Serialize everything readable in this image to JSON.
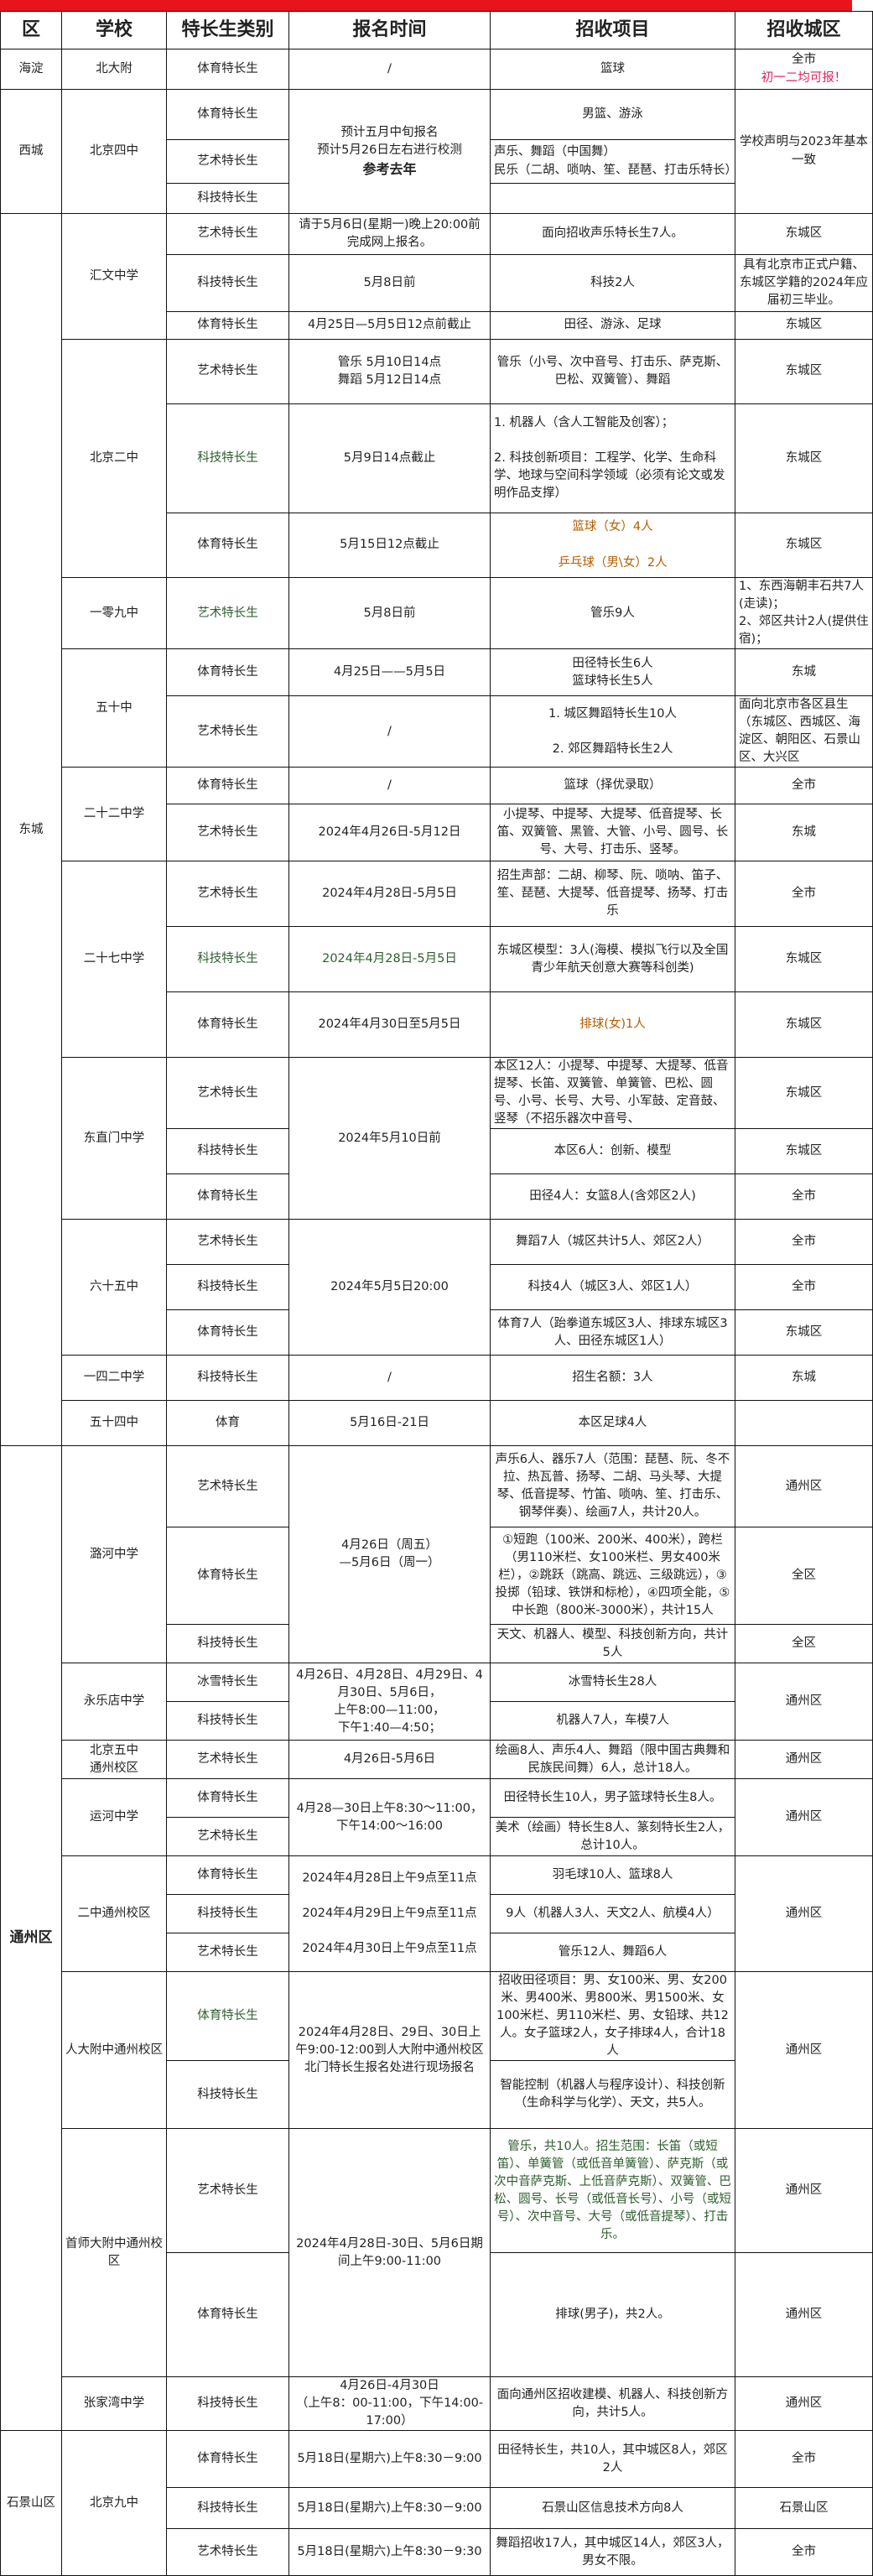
{
  "title": "",
  "colors": {
    "title_bar": "#e8141c",
    "note_red": "#e0245e",
    "orange": "#b35c00",
    "green": "#2e5e2e"
  },
  "headers": [
    "区",
    "学校",
    "特长生类别",
    "报名时间",
    "招收项目",
    "招收城区"
  ],
  "regions": [
    {
      "name": "海淀",
      "schools": [
        {
          "name": "北大附",
          "rows": [
            {
              "category": "体育特长生",
              "time": "/",
              "items": "篮球",
              "area": "全市",
              "area_note": "初一二均可报！"
            }
          ]
        }
      ]
    },
    {
      "name": "西城",
      "schools": [
        {
          "name": "北京四中",
          "time": "预计五月中旬报名\n预计5月26日左右进行校测",
          "time_bold": "参考去年",
          "area": "学校声明与2023年基本一致",
          "rows": [
            {
              "category": "体育特长生",
              "items": "男篮、游泳"
            },
            {
              "category": "艺术特长生",
              "items": "声乐、舞蹈（中国舞）\n民乐（二胡、唢呐、笙、琵琶、打击乐特长）",
              "left": true
            },
            {
              "category": "科技特长生",
              "items": ""
            }
          ]
        }
      ]
    },
    {
      "name": "东城",
      "schools": [
        {
          "name": "汇文中学",
          "rows": [
            {
              "category": "艺术特长生",
              "time": "请于5月6日(星期一)晚上20:00前完成网上报名。",
              "items": "面向招收声乐特长生7人。",
              "area": "东城区"
            },
            {
              "category": "科技特长生",
              "time": "5月8日前",
              "items": "科技2人",
              "area": "具有北京市正式户籍、东城区学籍的2024年应届初三毕业。"
            },
            {
              "category": "体育特长生",
              "time": "4月25日—5月5日12点前截止",
              "items": "田径、游泳、足球",
              "area": "东城区"
            }
          ]
        },
        {
          "name": "北京二中",
          "rows": [
            {
              "category": "艺术特长生",
              "time": "管乐  5月10日14点\n舞蹈  5月12日14点",
              "items": "管乐（小号、次中音号、打击乐、萨克斯、巴松、双簧管）、舞蹈",
              "area": "东城区"
            },
            {
              "category": "科技特长生",
              "category_color": "#2e5e2e",
              "time": "5月9日14点截止",
              "items": "1. 机器人（含人工智能及创客）；\n\n2. 科技创新项目：工程学、化学、生命科学、地球与空间科学领域（必须有论文或发明作品支撑）",
              "left": true,
              "area": "东城区"
            },
            {
              "category": "体育特长生",
              "time": "5月15日12点截止",
              "items": "篮球（女）4人\n\n乒乓球（男\\女）2人",
              "items_color": "#b35c00",
              "area": "东城区"
            }
          ]
        },
        {
          "name": "一零九中",
          "rows": [
            {
              "category": "艺术特长生",
              "category_color": "#2e5e2e",
              "time": "5月8日前",
              "items": "管乐9人",
              "area": "1、东西海朝丰石共7人(走读)；\n2、郊区共计2人(提供住宿)；",
              "area_left": true
            }
          ]
        },
        {
          "name": "五十中",
          "rows": [
            {
              "category": "体育特长生",
              "time": "4月25日——5月5日",
              "items": "田径特长生6人\n篮球特长生5人",
              "area": "东城"
            },
            {
              "category": "艺术特长生",
              "time": "/",
              "items": "1. 城区舞蹈特长生10人\n\n2. 郊区舞蹈特长生2人",
              "area": "面向北京市各区县生（东城区、西城区、海淀区、朝阳区、石景山区、大兴区",
              "area_left": true
            }
          ]
        },
        {
          "name": "二十二中学",
          "rows": [
            {
              "category": "体育特长生",
              "time": "/",
              "items": "篮球（择优录取）",
              "area": "全市"
            },
            {
              "category": "艺术特长生",
              "time": "2024年4月26日-5月12日",
              "items": "小提琴、中提琴、大提琴、低音提琴、长笛、双簧管、黑管、大管、小号、圆号、长号、大号、打击乐、竖琴。",
              "area": "东城"
            }
          ]
        },
        {
          "name": "二十七中学",
          "rows": [
            {
              "category": "艺术特长生",
              "time": "2024年4月28日-5月5日",
              "items": "招生声部：二胡、柳琴、阮、唢呐、笛子、笙、琵琶、大提琴、低音提琴、扬琴、打击乐",
              "area": "全市"
            },
            {
              "category": "科技特长生",
              "category_color": "#2e5e2e",
              "time": "2024年4月28日-5月5日",
              "time_color": "#2e5e2e",
              "items": "东城区模型：3人(海模、模拟飞行以及全国青少年航天创意大赛等科创类)",
              "area": "东城区"
            },
            {
              "category": "体育特长生",
              "time": "2024年4月30日至5月5日",
              "items": "排球(女)1人",
              "items_color": "#b35c00",
              "area": "东城区"
            }
          ]
        },
        {
          "name": "东直门中学",
          "time": "2024年5月10日前",
          "rows": [
            {
              "category": "艺术特长生",
              "items": "本区12人：小提琴、中提琴、大提琴、低音提琴、长笛、双簧管、单簧管、巴松、圆号、小号、长号、大号、小军鼓、定音鼓、竖琴（不招乐器次中音号、",
              "left": true,
              "area": "东城区"
            },
            {
              "category": "科技特长生",
              "items": "本区6人：创新、模型",
              "area": "东城区"
            },
            {
              "category": "体育特长生",
              "items": "田径4人：女篮8人(含郊区2人)",
              "area": "全市"
            }
          ]
        },
        {
          "name": "六十五中",
          "time": "2024年5月5日20:00",
          "rows": [
            {
              "category": "艺术特长生",
              "items": "舞蹈7人（城区共计5人、郊区2人）",
              "area": "全市"
            },
            {
              "category": "科技特长生",
              "items": "科技4人（城区3人、郊区1人）",
              "area": "全市"
            },
            {
              "category": "体育特长生",
              "items": "体育7人（跆拳道东城区3人、排球东城区3人、田径东城区1人）",
              "area": "东城区"
            }
          ]
        },
        {
          "name": "一四二中学",
          "rows": [
            {
              "category": "科技特长生",
              "time": "/",
              "items": "招生名额：3人",
              "area": "东城"
            }
          ]
        },
        {
          "name": "五十四中",
          "rows": [
            {
              "category": "体育",
              "time": "5月16日-21日",
              "items": "本区足球4人",
              "area": ""
            }
          ]
        }
      ]
    },
    {
      "name": "通州区",
      "bold": true,
      "schools": [
        {
          "name": "潞河中学",
          "time": "4月26日（周五）\n—5月6日（周一）",
          "rows": [
            {
              "category": "艺术特长生",
              "items": "声乐6人、器乐7人（范围：琵琶、阮、冬不拉、热瓦普、扬琴、二胡、马头琴、大提琴、低音提琴、竹笛、唢呐、笙、打击乐、钢琴伴奏）、绘画7人，共计20人。",
              "area": "通州区"
            },
            {
              "category": "体育特长生",
              "items": "①短跑（100米、200米、400米），跨栏（男110米栏、女100米栏、男女400米栏），②跳跃（跳高、跳远、三级跳远），③投掷（铅球、铁饼和标枪），④四项全能，⑤中长跑（800米-3000米），共计15人",
              "area": "全区"
            },
            {
              "category": "科技特长生",
              "items": "天文、机器人、模型、科技创新方向，共计5人",
              "area": "全区"
            }
          ]
        },
        {
          "name": "永乐店中学",
          "time": "4月26日、4月28日、4月29日、4月30日、5月6日，\n上午8:00—11:00，\n下午1:40—4:50；",
          "area": "通州区",
          "rows": [
            {
              "category": "冰雪特长生",
              "items": "冰雪特长生28人"
            },
            {
              "category": "科技特长生",
              "items": "机器人7人，车模7人"
            }
          ]
        },
        {
          "name": "北京五中\n通州校区",
          "rows": [
            {
              "category": "艺术特长生",
              "time": "4月26日-5月6日",
              "items": "绘画8人、声乐4人、舞蹈（限中国古典舞和民族民间舞）6人，总计18人。",
              "area": "通州区"
            }
          ]
        },
        {
          "name": "运河中学",
          "time": "4月28—30日上午8:30～11:00，\n下午14:00～16:00",
          "area": "通州区",
          "rows": [
            {
              "category": "体育特长生",
              "items": "田径特长生10人，男子篮球特长生8人。"
            },
            {
              "category": "艺术特长生",
              "items": "美术（绘画）特长生8人、篆刻特长生2人，总计10人。"
            }
          ]
        },
        {
          "name": "二中通州校区",
          "time": "2024年4月28日上午9点至11点\n\n2024年4月29日上午9点至11点\n\n2024年4月30日上午9点至11点",
          "area": "通州区",
          "rows": [
            {
              "category": "体育特长生",
              "items": "羽毛球10人、篮球8人"
            },
            {
              "category": "科技特长生",
              "items": "9人（机器人3人、天文2人、航模4人）"
            },
            {
              "category": "艺术特长生",
              "items": "管乐12人、舞蹈6人"
            }
          ]
        },
        {
          "name": "人大附中通州校区",
          "time": "2024年4月28日、29日、30日上午9:00-12:00到人大附中通州校区北门特长生报名处进行现场报名",
          "area": "通州区",
          "rows": [
            {
              "category": "体育特长生",
              "category_color": "#2e5e2e",
              "items": "招收田径项目：男、女100米、男、女200米、男400米、男800米、男1500米、女100米栏、男110米栏、男、女铅球、共12人。女子篮球2人，女子排球4人，合计18人"
            },
            {
              "category": "科技特长生",
              "items": "智能控制（机器人与程序设计）、科技创新（生命科学与化学）、天文，共5人。"
            }
          ]
        },
        {
          "name": "首师大附中通州校区",
          "time": "2024年4月28日-30日、5月6日期间上午9:00-11:00",
          "rows": [
            {
              "category": "艺术特长生",
              "items": "管乐，共10人。招生范围：长笛（或短笛）、单簧管（或低音单簧管）、萨克斯（或次中音萨克斯、上低音萨克斯）、双簧管、巴松、圆号、长号（或低音长号）、小号（或短号）、次中音号、大号（或低音提琴）、打击乐。",
              "items_color": "#2e5e2e",
              "area": "通州区"
            },
            {
              "category": "体育特长生",
              "items": "排球(男子)，共2人。",
              "area": "通州区"
            }
          ]
        },
        {
          "name": "张家湾中学",
          "rows": [
            {
              "category": "科技特长生",
              "time": "4月26日-4月30日\n（上午8：00-11:00，下午14:00-17:00）",
              "items": "面向通州区招收建模、机器人、科技创新方向，共计5人。",
              "area": "通州区"
            }
          ]
        }
      ]
    },
    {
      "name": "石景山区",
      "schools": [
        {
          "name": "北京九中",
          "rows": [
            {
              "category": "体育特长生",
              "time": "5月18日(星期六)上午8:30－9:00",
              "items": "田径特长生，共10人，其中城区8人，郊区2人",
              "area": "全市"
            },
            {
              "category": "科技特长生",
              "time": "5月18日(星期六)上午8:30－9:00",
              "items": "石景山区信息技术方向8人",
              "area": "石景山区"
            },
            {
              "category": "艺术特长生",
              "time": "5月18日(星期六)上午8:30－9:30",
              "items": "舞蹈招收17人，其中城区14人，郊区3人，男女不限。",
              "area": "全市"
            }
          ]
        }
      ]
    }
  ]
}
